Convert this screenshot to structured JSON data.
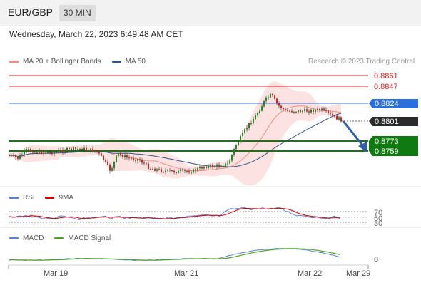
{
  "header": {
    "symbol": "EUR/GBP",
    "timeframe": "30 MIN"
  },
  "datetime": "Wednesday, March 22, 2023 6:49:48 AM CET",
  "legends": {
    "main": [
      {
        "label": "MA 20 + Bollinger Bands",
        "color": "#f28b82"
      },
      {
        "label": "MA 50",
        "color": "#34558b"
      }
    ],
    "rsi": [
      {
        "label": "RSI",
        "color": "#5b7fd6"
      },
      {
        "label": "9MA",
        "color": "#d40000"
      }
    ],
    "macd": [
      {
        "label": "MACD",
        "color": "#5b7fd6"
      },
      {
        "label": "MACD Signal",
        "color": "#4ca31e"
      }
    ]
  },
  "copyright": "Research © 2023 Trading Central",
  "price_levels": [
    {
      "value": "0.8861",
      "kind": "resistance",
      "color": "#e31b1b"
    },
    {
      "value": "0.8847",
      "kind": "resistance",
      "color": "#e31b1b"
    },
    {
      "value": "0.8824",
      "kind": "pivot",
      "color": "#2a6fdb"
    },
    {
      "value": "0.8801",
      "kind": "last",
      "color": "#2b2b2b"
    },
    {
      "value": "0.8773",
      "kind": "support",
      "color": "#0f7a0f"
    },
    {
      "value": "0.8759",
      "kind": "support",
      "color": "#0f7a0f"
    }
  ],
  "rsi_levels": [
    "70",
    "50",
    "30"
  ],
  "macd_levels": [
    "0"
  ],
  "x_labels": [
    "Mar 19",
    "Mar 21",
    "Mar 22",
    "Mar 29"
  ],
  "arrow": {
    "direction": "down",
    "color": "#2e5fa8"
  }
}
